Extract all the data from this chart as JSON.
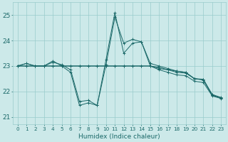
{
  "xlabel": "Humidex (Indice chaleur)",
  "xlim": [
    -0.5,
    23.5
  ],
  "ylim": [
    20.7,
    25.5
  ],
  "yticks": [
    21,
    22,
    23,
    24,
    25
  ],
  "xticks": [
    0,
    1,
    2,
    3,
    4,
    5,
    6,
    7,
    8,
    9,
    10,
    11,
    12,
    13,
    14,
    15,
    16,
    17,
    18,
    19,
    20,
    21,
    22,
    23
  ],
  "bg_color": "#cce9e9",
  "grid_color": "#99cccc",
  "line_color": "#1a6868",
  "lines": [
    {
      "x": [
        0,
        1,
        2,
        3,
        4,
        5,
        6,
        7,
        8,
        9,
        10,
        11,
        12,
        13,
        14,
        15,
        16,
        17,
        18,
        19,
        20,
        21,
        22,
        23
      ],
      "y": [
        23.0,
        23.1,
        23.0,
        23.0,
        23.2,
        23.0,
        22.75,
        21.45,
        21.55,
        21.45,
        23.25,
        25.1,
        23.5,
        23.9,
        23.95,
        23.0,
        22.9,
        22.85,
        22.8,
        22.75,
        22.5,
        22.45,
        21.85,
        21.75
      ]
    },
    {
      "x": [
        0,
        1,
        2,
        3,
        4,
        5,
        6,
        7,
        8,
        9,
        10,
        11,
        12,
        13,
        14,
        15,
        16,
        17,
        18,
        19,
        20,
        21,
        22,
        23
      ],
      "y": [
        23.0,
        23.1,
        23.0,
        23.0,
        23.15,
        23.05,
        22.85,
        21.6,
        21.65,
        21.45,
        23.05,
        24.92,
        23.9,
        24.05,
        23.95,
        23.1,
        23.0,
        22.9,
        22.8,
        22.75,
        22.5,
        22.48,
        21.85,
        21.75
      ]
    },
    {
      "x": [
        0,
        1,
        2,
        3,
        4,
        5,
        6,
        7,
        8,
        9,
        10,
        11,
        12,
        13,
        14,
        15,
        16,
        17,
        18,
        19,
        20,
        21,
        22,
        23
      ],
      "y": [
        23.0,
        23.0,
        23.0,
        23.0,
        23.0,
        23.0,
        23.0,
        23.0,
        23.0,
        23.0,
        23.0,
        23.0,
        23.0,
        23.0,
        23.0,
        23.0,
        22.95,
        22.85,
        22.75,
        22.72,
        22.5,
        22.46,
        21.88,
        21.76
      ]
    },
    {
      "x": [
        0,
        1,
        2,
        3,
        4,
        5,
        6,
        7,
        8,
        9,
        10,
        11,
        12,
        13,
        14,
        15,
        16,
        17,
        18,
        19,
        20,
        21,
        22,
        23
      ],
      "y": [
        23.0,
        23.0,
        23.0,
        23.0,
        23.0,
        23.0,
        23.0,
        23.0,
        23.0,
        23.0,
        23.0,
        23.0,
        23.0,
        23.0,
        23.0,
        23.0,
        22.85,
        22.75,
        22.65,
        22.62,
        22.4,
        22.35,
        21.82,
        21.72
      ]
    }
  ]
}
